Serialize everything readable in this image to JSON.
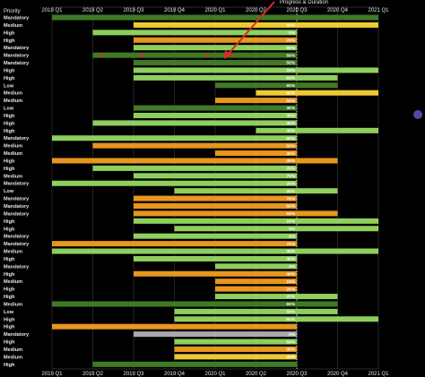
{
  "chart_data": {
    "type": "bar",
    "subtype": "gantt",
    "row_header": "Priority",
    "annotation": "Progress & Duration",
    "x_ticks": [
      "2019 Q1",
      "2019 Q2",
      "2019 Q3",
      "2019 Q4",
      "2020 Q1",
      "2020 Q2",
      "2020 Q3",
      "2020 Q4",
      "2021 Q1"
    ],
    "x_range": [
      "2019 Q1",
      "2021 Q1"
    ],
    "today_marker": "2020 Q3",
    "grid": true,
    "colors": {
      "light_green": "#8ecf5d",
      "mid_green": "#5fa33a",
      "dark_green": "#3f7a26",
      "orange": "#e8961e",
      "yellow": "#edc935",
      "gray": "#a9a9a9",
      "today_line": "#d0d0d0",
      "arrow": "#e0282a",
      "marker": "#e0282a"
    },
    "rows": [
      {
        "priority": "Mandatory",
        "start": 0.0,
        "end": 8.0,
        "color": "dark_green",
        "pct": ""
      },
      {
        "priority": "Medium",
        "start": 2.0,
        "end": 8.0,
        "color": "yellow",
        "pct": "60%"
      },
      {
        "priority": "High",
        "start": 1.0,
        "end": 6.0,
        "color": "light_green",
        "pct": "0%"
      },
      {
        "priority": "High",
        "start": 2.0,
        "end": 6.0,
        "color": "orange",
        "pct": "20%"
      },
      {
        "priority": "Mandatory",
        "start": 2.0,
        "end": 6.0,
        "color": "light_green",
        "pct": "50%"
      },
      {
        "priority": "Mandatory",
        "start": 1.0,
        "end": 6.0,
        "color": "dark_green",
        "pct": "50%"
      },
      {
        "priority": "Mandatory",
        "start": 2.0,
        "end": 6.0,
        "color": "dark_green",
        "pct": "50%"
      },
      {
        "priority": "High",
        "start": 2.0,
        "end": 8.0,
        "color": "light_green",
        "pct": "20%"
      },
      {
        "priority": "High",
        "start": 2.0,
        "end": 7.0,
        "color": "light_green",
        "pct": "60%"
      },
      {
        "priority": "Low",
        "start": 4.0,
        "end": 7.0,
        "color": "dark_green",
        "pct": "60%"
      },
      {
        "priority": "Medium",
        "start": 5.0,
        "end": 8.0,
        "color": "yellow",
        "pct": "50%"
      },
      {
        "priority": "Medium",
        "start": 4.0,
        "end": 6.0,
        "color": "orange",
        "pct": "50%"
      },
      {
        "priority": "Low",
        "start": 2.0,
        "end": 6.0,
        "color": "dark_green",
        "pct": "30%"
      },
      {
        "priority": "High",
        "start": 2.0,
        "end": 6.0,
        "color": "light_green",
        "pct": "30%"
      },
      {
        "priority": "High",
        "start": 1.0,
        "end": 6.0,
        "color": "light_green",
        "pct": "30%"
      },
      {
        "priority": "High",
        "start": 5.0,
        "end": 8.0,
        "color": "light_green",
        "pct": "30%"
      },
      {
        "priority": "Mandatory",
        "start": 0.0,
        "end": 6.0,
        "color": "light_green",
        "pct": "50%"
      },
      {
        "priority": "Medium",
        "start": 1.0,
        "end": 6.0,
        "color": "orange",
        "pct": "50%"
      },
      {
        "priority": "Medium",
        "start": 4.0,
        "end": 6.0,
        "color": "orange",
        "pct": "30%"
      },
      {
        "priority": "High",
        "start": 0.0,
        "end": 7.0,
        "color": "orange",
        "pct": "40%"
      },
      {
        "priority": "High",
        "start": 1.0,
        "end": 6.0,
        "color": "light_green",
        "pct": "20%"
      },
      {
        "priority": "Medium",
        "start": 2.0,
        "end": 6.0,
        "color": "light_green",
        "pct": "70%"
      },
      {
        "priority": "Mandatory",
        "start": 0.0,
        "end": 6.0,
        "color": "light_green",
        "pct": "20%"
      },
      {
        "priority": "Low",
        "start": 3.0,
        "end": 7.0,
        "color": "light_green",
        "pct": "30%"
      },
      {
        "priority": "Mandatory",
        "start": 2.0,
        "end": 6.0,
        "color": "orange",
        "pct": "70%"
      },
      {
        "priority": "Mandatory",
        "start": 2.0,
        "end": 6.0,
        "color": "orange",
        "pct": "60%"
      },
      {
        "priority": "Mandatory",
        "start": 2.0,
        "end": 7.0,
        "color": "orange",
        "pct": "50%"
      },
      {
        "priority": "High",
        "start": 2.0,
        "end": 8.0,
        "color": "light_green",
        "pct": "10%"
      },
      {
        "priority": "High",
        "start": 3.0,
        "end": 8.0,
        "color": "light_green",
        "pct": "0%"
      },
      {
        "priority": "Mandatory",
        "start": 2.0,
        "end": 6.0,
        "color": "light_green",
        "pct": "0%"
      },
      {
        "priority": "Mandatory",
        "start": 0.0,
        "end": 6.0,
        "color": "orange",
        "pct": "70%"
      },
      {
        "priority": "Medium",
        "start": 0.0,
        "end": 8.0,
        "color": "light_green",
        "pct": "30%"
      },
      {
        "priority": "High",
        "start": 2.0,
        "end": 6.0,
        "color": "light_green",
        "pct": "30%"
      },
      {
        "priority": "Mandatory",
        "start": 4.0,
        "end": 6.0,
        "color": "light_green",
        "pct": "0%"
      },
      {
        "priority": "High",
        "start": 2.0,
        "end": 6.0,
        "color": "orange",
        "pct": "40%"
      },
      {
        "priority": "Medium",
        "start": 4.0,
        "end": 6.0,
        "color": "orange",
        "pct": "10%"
      },
      {
        "priority": "High",
        "start": 4.0,
        "end": 6.0,
        "color": "orange",
        "pct": "20%"
      },
      {
        "priority": "High",
        "start": 4.0,
        "end": 7.0,
        "color": "light_green",
        "pct": "20%"
      },
      {
        "priority": "Medium",
        "start": 0.0,
        "end": 7.0,
        "color": "dark_green",
        "pct": "60%"
      },
      {
        "priority": "Low",
        "start": 3.0,
        "end": 7.0,
        "color": "light_green",
        "pct": "50%"
      },
      {
        "priority": "High",
        "start": 3.0,
        "end": 8.0,
        "color": "light_green",
        "pct": "60%"
      },
      {
        "priority": "High",
        "start": 0.0,
        "end": 6.0,
        "color": "orange",
        "pct": ""
      },
      {
        "priority": "Mandatory",
        "start": 2.0,
        "end": 6.0,
        "color": "gray",
        "pct": "0%"
      },
      {
        "priority": "High",
        "start": 3.0,
        "end": 6.0,
        "color": "light_green",
        "pct": "50%"
      },
      {
        "priority": "Medium",
        "start": 3.0,
        "end": 6.0,
        "color": "orange",
        "pct": "30%"
      },
      {
        "priority": "Medium",
        "start": 3.0,
        "end": 6.0,
        "color": "yellow",
        "pct": "20%"
      },
      {
        "priority": "High",
        "start": 1.0,
        "end": 6.0,
        "color": "dark_green",
        "pct": ""
      }
    ],
    "red_markers": [
      {
        "row": 5,
        "x": 1.2
      },
      {
        "row": 5,
        "x": 2.2
      },
      {
        "row": 5,
        "x": 3.8
      },
      {
        "row": 5,
        "x": 4.4
      }
    ]
  }
}
